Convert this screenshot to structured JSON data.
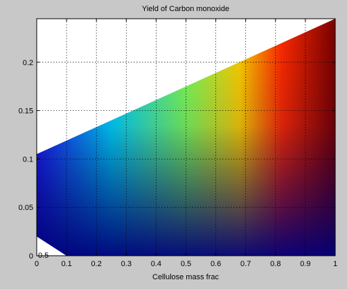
{
  "chart_data": {
    "type": "area",
    "title": "Yield of Carbon monoxide",
    "xlabel": "Cellulose mass frac",
    "ylabel": "",
    "xlim": [
      0,
      1
    ],
    "ylim": [
      0,
      0.245
    ],
    "xticks": [
      "0",
      "0.1",
      "0.2",
      "0.3",
      "0.4",
      "0.5",
      "0.6",
      "0.7",
      "0.8",
      "0.9",
      "1"
    ],
    "yticks": [
      "0",
      "0.05",
      "0.1",
      "0.15",
      "0.2"
    ],
    "corner_label": "0.5",
    "grid": true,
    "colormap": "jet",
    "colorbar": false,
    "region_boundary": {
      "x": [
        0,
        1,
        1,
        0.1,
        0,
        0
      ],
      "y": [
        0.105,
        0.245,
        0,
        0,
        0.02,
        0.105
      ]
    }
  }
}
